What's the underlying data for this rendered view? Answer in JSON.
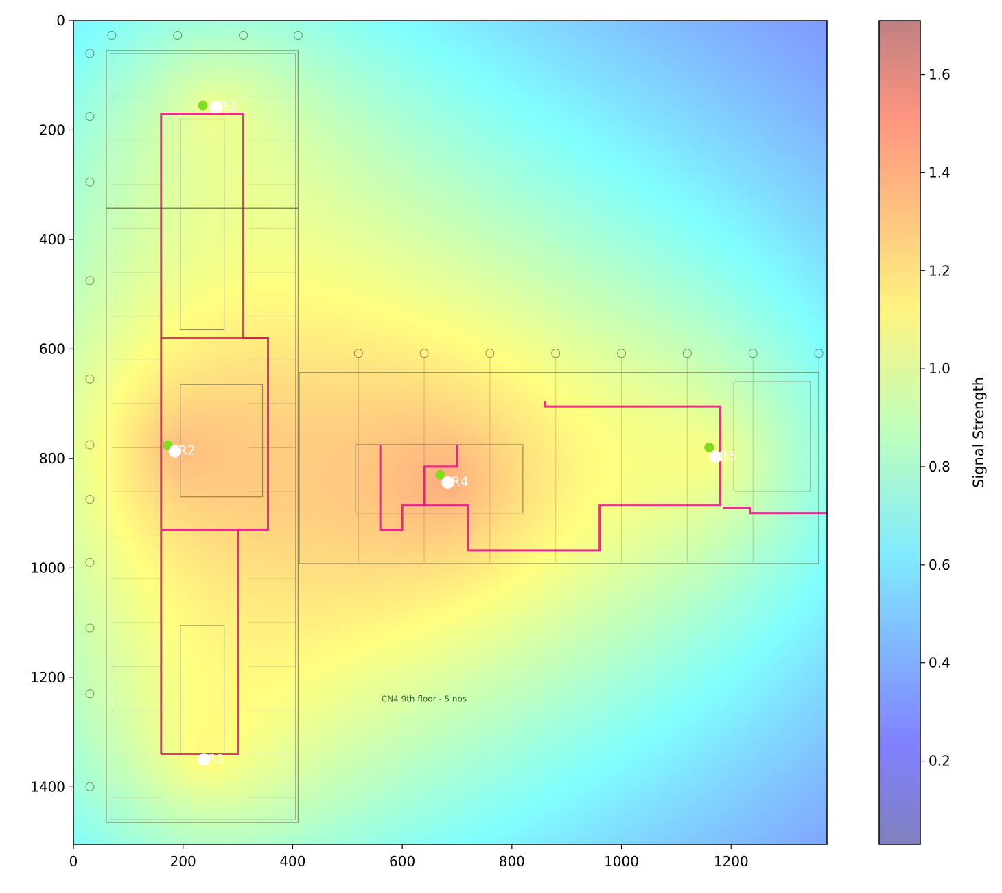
{
  "chart_data": {
    "type": "heatmap",
    "title": "",
    "xlabel": "",
    "ylabel": "",
    "xlim": [
      0,
      1375
    ],
    "ylim": [
      1505,
      0
    ],
    "x_ticks": [
      0,
      200,
      400,
      600,
      800,
      1000,
      1200
    ],
    "y_ticks": [
      0,
      200,
      400,
      600,
      800,
      1000,
      1200,
      1400
    ],
    "colorbar": {
      "label": "Signal Strength",
      "range": [
        0.03,
        1.71
      ],
      "ticks": [
        0.2,
        0.4,
        0.6,
        0.8,
        1.0,
        1.2,
        1.4,
        1.6
      ],
      "colormap": "jet",
      "alpha": 0.5
    },
    "routers": [
      {
        "name": "R1",
        "x": 238,
        "y": 1350,
        "green_marker": null
      },
      {
        "name": "R2",
        "x": 185,
        "y": 787,
        "green_marker": [
          172,
          776
        ]
      },
      {
        "name": "R3",
        "x": 260,
        "y": 158,
        "green_marker": [
          236,
          155
        ]
      },
      {
        "name": "R4",
        "x": 683,
        "y": 844,
        "green_marker": [
          669,
          830
        ]
      },
      {
        "name": "R5",
        "x": 1172,
        "y": 797,
        "green_marker": [
          1160,
          780
        ]
      }
    ],
    "floorplan_note": "CN4 9th floor - 5 nos",
    "marker_colors": {
      "router": "#ffffff",
      "reference": "#7fdc1c",
      "route": "#e6007e"
    }
  }
}
